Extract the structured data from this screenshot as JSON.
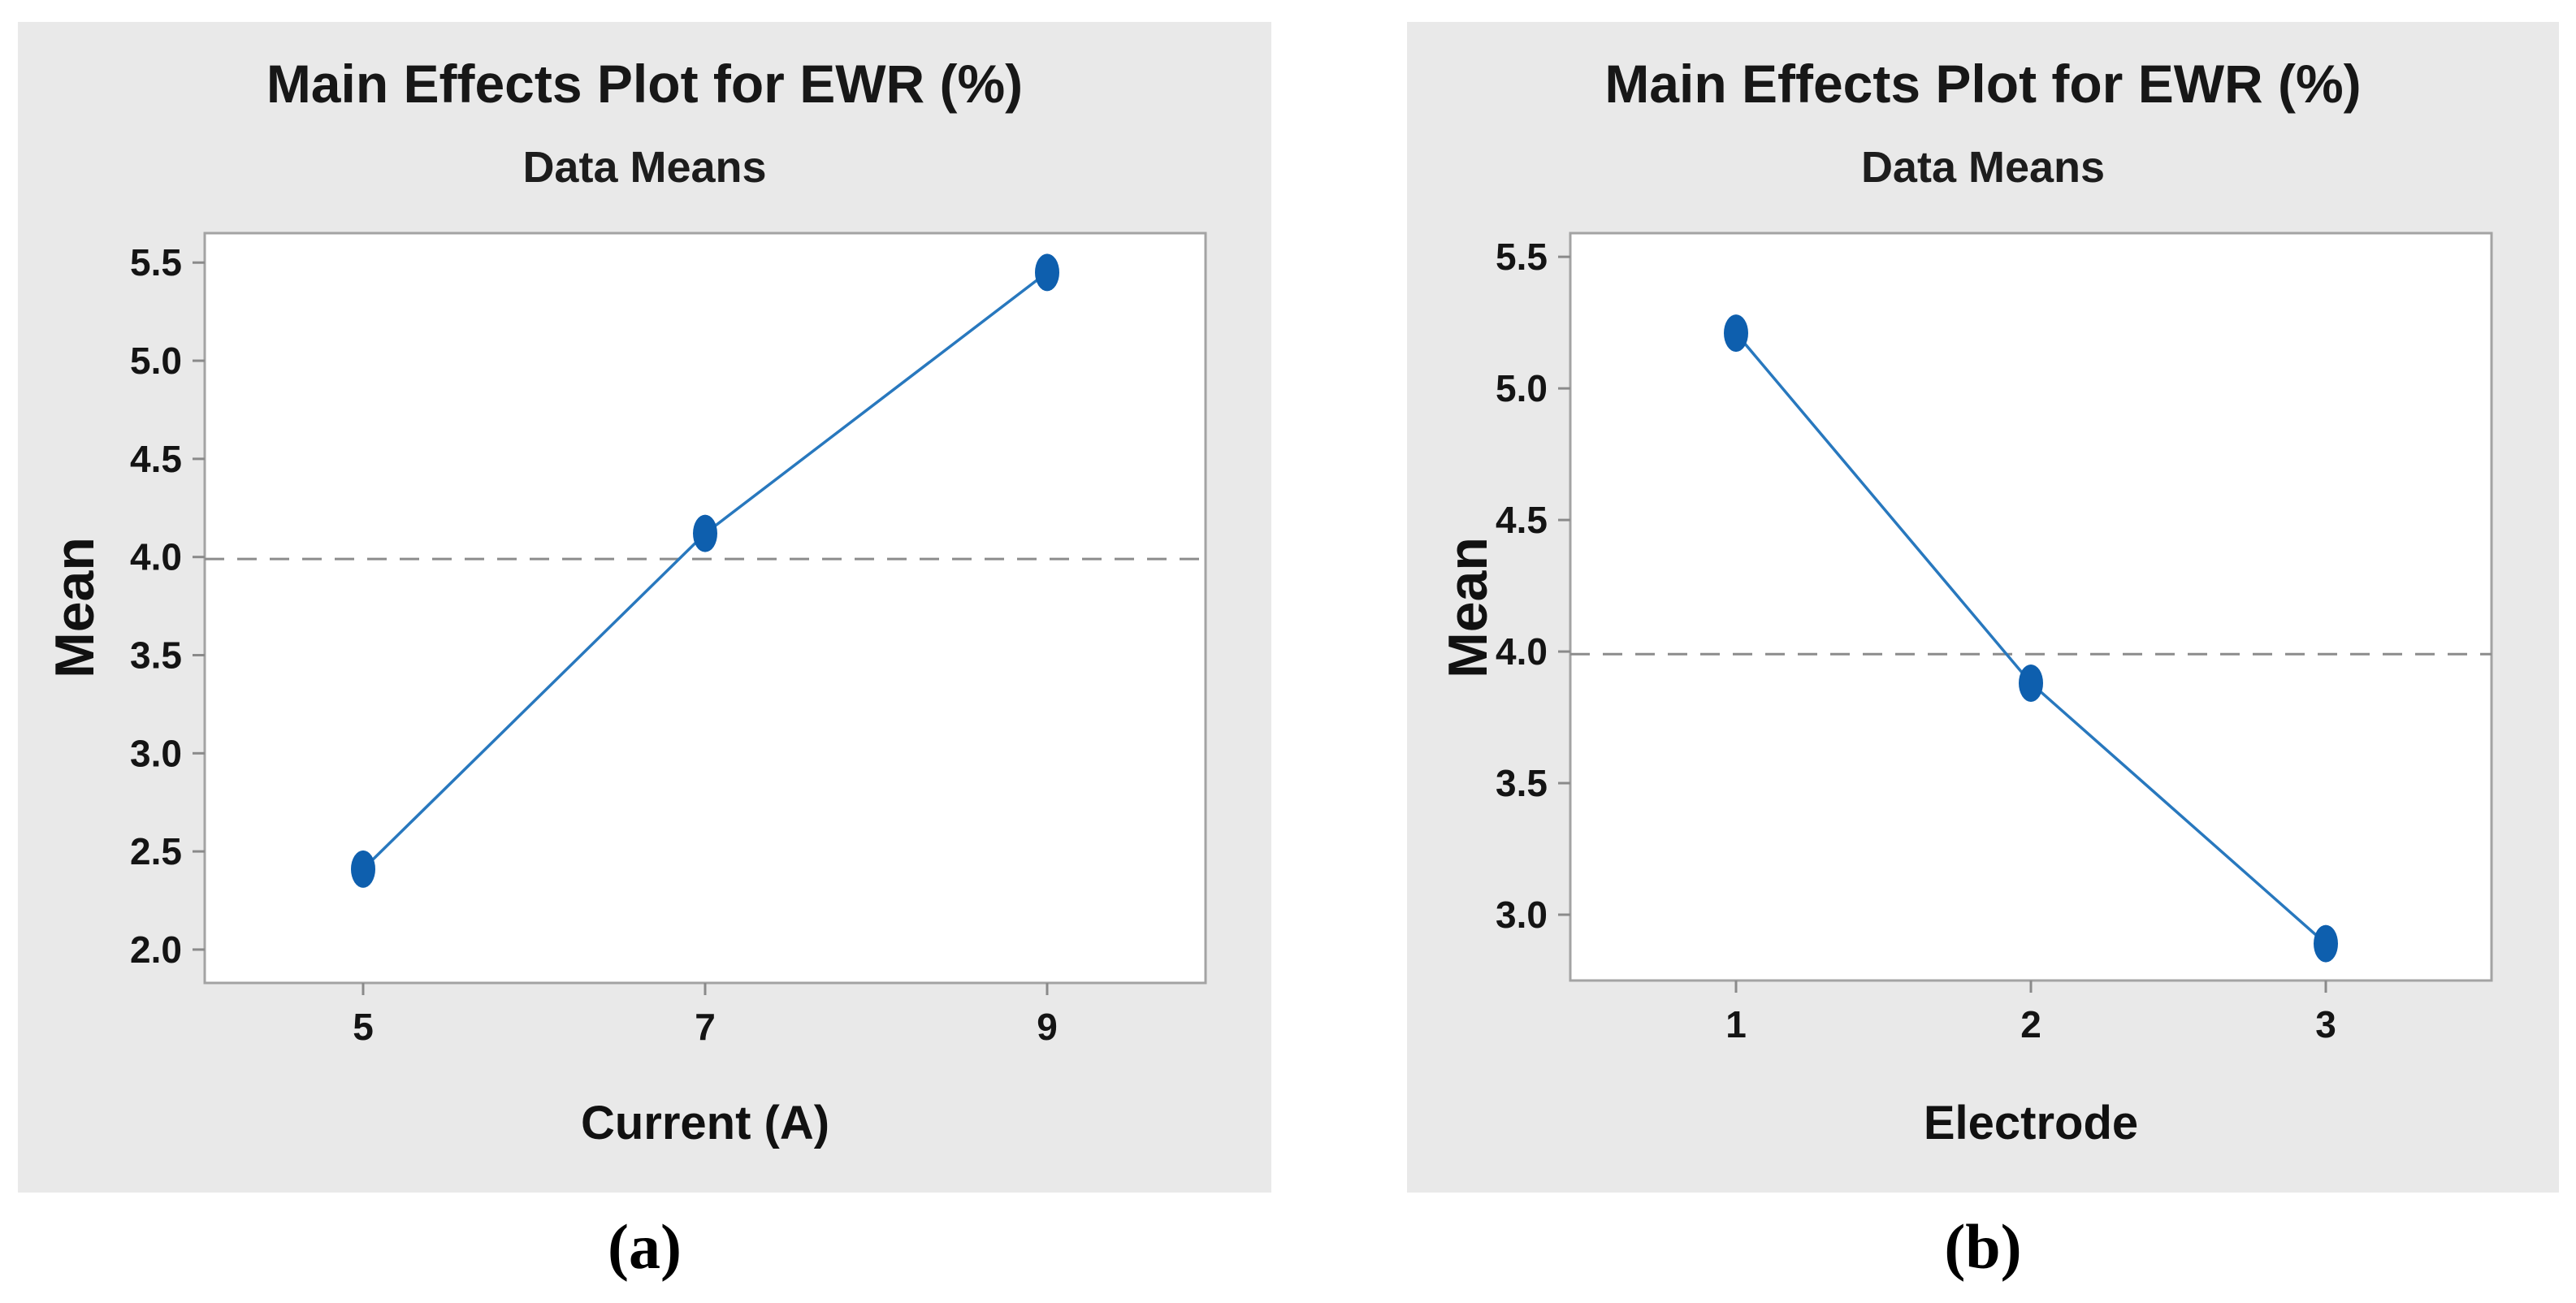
{
  "figure_captions": {
    "a": "(a)",
    "b": "(b)"
  },
  "colors": {
    "panel_bg": "#e9e9e9",
    "plot_bg": "#ffffff",
    "plot_border": "#a3a3a3",
    "tick": "#8a8a8a",
    "tick_text": "#141414",
    "mean_dashed_line": "#8c8c8c",
    "series_line": "#2878be",
    "series_marker": "#0e5fae"
  },
  "chart_data": [
    {
      "type": "line",
      "title": "Main Effects Plot for EWR (%)",
      "subtitle": "Data Means",
      "xlabel": "Current (A)",
      "ylabel": "Mean",
      "caption": "(a)",
      "categories": [
        5,
        7,
        9
      ],
      "values": [
        2.41,
        4.12,
        5.45
      ],
      "overall_mean_line": 3.99,
      "yticks": [
        2.0,
        2.5,
        3.0,
        3.5,
        4.0,
        4.5,
        5.0,
        5.5
      ],
      "ylim": [
        1.83,
        5.65
      ],
      "grid": false,
      "legend": "none"
    },
    {
      "type": "line",
      "title": "Main Effects Plot for EWR (%)",
      "subtitle": "Data Means",
      "xlabel": "Electrode",
      "ylabel": "Mean",
      "caption": "(b)",
      "categories": [
        1,
        2,
        3
      ],
      "values": [
        5.21,
        3.88,
        2.89
      ],
      "overall_mean_line": 3.99,
      "yticks": [
        3.0,
        3.5,
        4.0,
        4.5,
        5.0,
        5.5
      ],
      "ylim": [
        2.75,
        5.59
      ],
      "grid": false,
      "legend": "none"
    }
  ]
}
